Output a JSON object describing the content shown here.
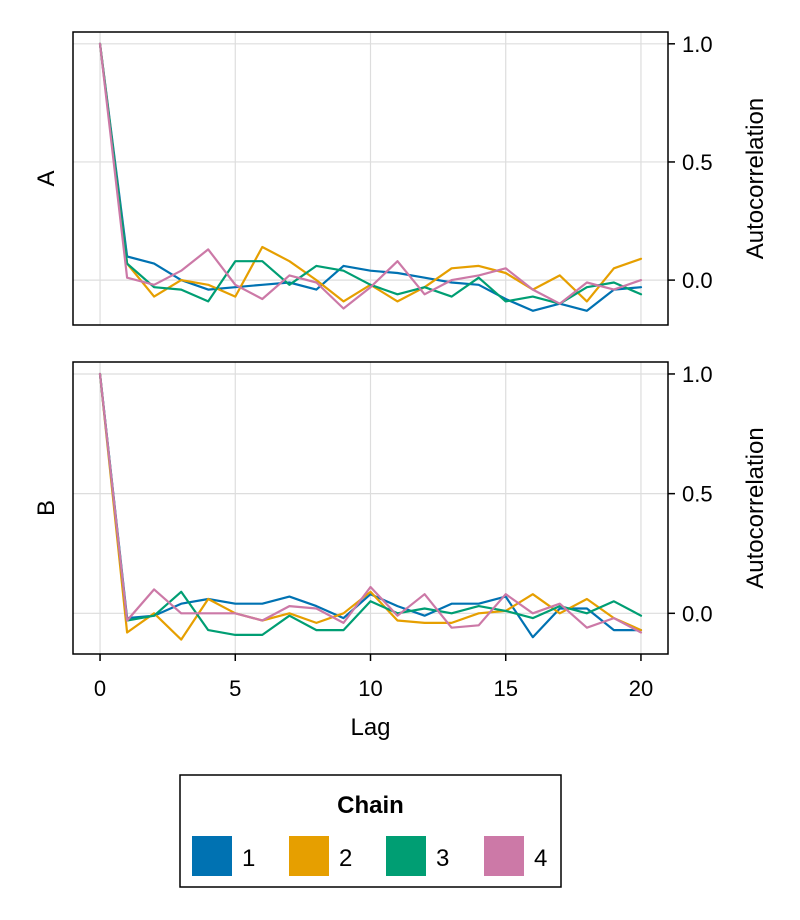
{
  "chart_data": {
    "type": "line",
    "x_label": "Lag",
    "y_label": "Autocorrelation",
    "x_ticks": [
      0,
      5,
      10,
      15,
      20
    ],
    "y_ticks": [
      0.0,
      0.5,
      1.0
    ],
    "y_tick_labels": [
      "0.0",
      "0.5",
      "1.0"
    ],
    "xlim": [
      -1,
      21
    ],
    "grid": true,
    "legend": {
      "title": "Chain",
      "placement": "bottom",
      "entries": [
        "1",
        "2",
        "3",
        "4"
      ]
    },
    "colors": [
      "#0072b2",
      "#e69f00",
      "#009e73",
      "#cc79a7"
    ],
    "x": [
      0,
      1,
      2,
      3,
      4,
      5,
      6,
      7,
      8,
      9,
      10,
      11,
      12,
      13,
      14,
      15,
      16,
      17,
      18,
      19,
      20
    ],
    "panels": [
      {
        "name": "A",
        "ylim": [
          -0.19,
          1.05
        ],
        "series": [
          {
            "name": "1",
            "values": [
              1.0,
              0.1,
              0.07,
              0.0,
              -0.04,
              -0.03,
              -0.02,
              -0.01,
              -0.04,
              0.06,
              0.04,
              0.03,
              0.01,
              -0.01,
              -0.02,
              -0.08,
              -0.13,
              -0.1,
              -0.13,
              -0.04,
              -0.03
            ]
          },
          {
            "name": "2",
            "values": [
              1.0,
              0.07,
              -0.07,
              0.0,
              -0.02,
              -0.07,
              0.14,
              0.08,
              0.0,
              -0.09,
              -0.02,
              -0.09,
              -0.03,
              0.05,
              0.06,
              0.03,
              -0.04,
              0.02,
              -0.09,
              0.05,
              0.09
            ]
          },
          {
            "name": "3",
            "values": [
              1.0,
              0.07,
              -0.03,
              -0.04,
              -0.09,
              0.08,
              0.08,
              -0.02,
              0.06,
              0.04,
              -0.02,
              -0.06,
              -0.03,
              -0.07,
              0.01,
              -0.09,
              -0.07,
              -0.1,
              -0.03,
              -0.01,
              -0.06
            ]
          },
          {
            "name": "4",
            "values": [
              1.0,
              0.01,
              -0.02,
              0.04,
              0.13,
              -0.02,
              -0.08,
              0.02,
              -0.01,
              -0.12,
              -0.03,
              0.08,
              -0.06,
              0.0,
              0.02,
              0.05,
              -0.04,
              -0.1,
              -0.01,
              -0.04,
              0.0
            ]
          }
        ]
      },
      {
        "name": "B",
        "ylim": [
          -0.17,
          1.05
        ],
        "series": [
          {
            "name": "1",
            "values": [
              1.0,
              -0.02,
              -0.01,
              0.04,
              0.06,
              0.04,
              0.04,
              0.07,
              0.03,
              -0.02,
              0.08,
              0.03,
              -0.01,
              0.04,
              0.04,
              0.07,
              -0.1,
              0.02,
              0.02,
              -0.07,
              -0.07
            ]
          },
          {
            "name": "2",
            "values": [
              1.0,
              -0.08,
              0.0,
              -0.11,
              0.06,
              0.0,
              -0.03,
              0.0,
              -0.04,
              0.0,
              0.09,
              -0.03,
              -0.04,
              -0.04,
              0.0,
              0.01,
              0.08,
              0.0,
              0.06,
              -0.02,
              -0.07
            ]
          },
          {
            "name": "3",
            "values": [
              1.0,
              -0.03,
              -0.01,
              0.09,
              -0.07,
              -0.09,
              -0.09,
              -0.01,
              -0.07,
              -0.07,
              0.05,
              0.0,
              0.02,
              0.0,
              0.03,
              0.01,
              -0.02,
              0.03,
              0.0,
              0.05,
              -0.01
            ]
          },
          {
            "name": "4",
            "values": [
              1.0,
              -0.03,
              0.1,
              0.0,
              0.0,
              0.0,
              -0.03,
              0.03,
              0.02,
              -0.04,
              0.11,
              -0.01,
              0.08,
              -0.06,
              -0.05,
              0.08,
              0.0,
              0.04,
              -0.06,
              -0.02,
              -0.08
            ]
          }
        ]
      }
    ]
  }
}
